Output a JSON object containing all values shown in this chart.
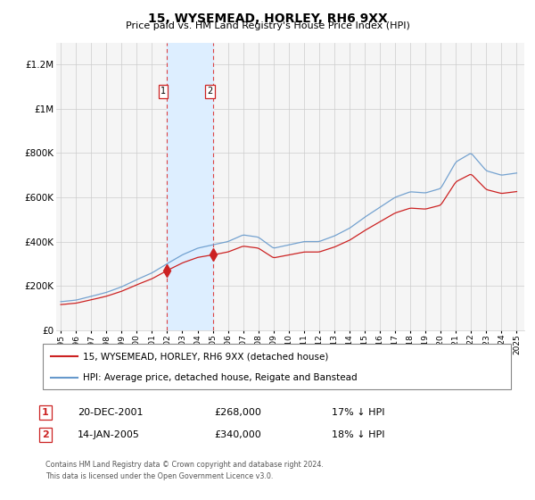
{
  "title": "15, WYSEMEAD, HORLEY, RH6 9XX",
  "subtitle": "Price paid vs. HM Land Registry's House Price Index (HPI)",
  "legend_line1": "15, WYSEMEAD, HORLEY, RH6 9XX (detached house)",
  "legend_line2": "HPI: Average price, detached house, Reigate and Banstead",
  "footnote1": "Contains HM Land Registry data © Crown copyright and database right 2024.",
  "footnote2": "This data is licensed under the Open Government Licence v3.0.",
  "sale1_num": "1",
  "sale1_date": "20-DEC-2001",
  "sale1_price": "£268,000",
  "sale1_hpi": "17% ↓ HPI",
  "sale2_num": "2",
  "sale2_date": "14-JAN-2005",
  "sale2_price": "£340,000",
  "sale2_hpi": "18% ↓ HPI",
  "sale1_year": 2001.97,
  "sale2_year": 2005.04,
  "highlight_color": "#ddeeff",
  "vline_color": "#dd4444",
  "hpi_color": "#6699cc",
  "sale_color": "#cc2222",
  "background_color": "#f5f5f5",
  "ylim_max": 1300000,
  "xlim_min": 1994.7,
  "xlim_max": 2025.5
}
